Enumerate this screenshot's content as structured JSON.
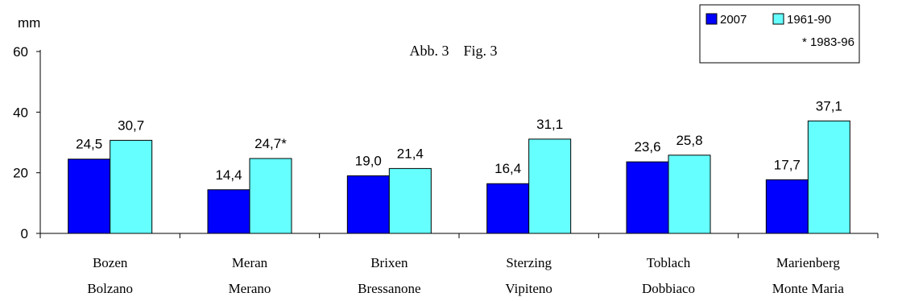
{
  "chart_data": {
    "type": "bar",
    "title": "Abb. 3    Fig. 3",
    "ylabel": "mm",
    "xlabel": "",
    "ylim": [
      0,
      60
    ],
    "yticks": [
      0,
      20,
      40,
      60
    ],
    "grid": false,
    "legend_position": "top-right",
    "legend_note": "* 1983-96",
    "categories": [
      {
        "line1": "Bozen",
        "line2": "Bolzano"
      },
      {
        "line1": "Meran",
        "line2": "Merano"
      },
      {
        "line1": "Brixen",
        "line2": "Bressanone"
      },
      {
        "line1": "Sterzing",
        "line2": "Vipiteno"
      },
      {
        "line1": "Toblach",
        "line2": "Dobbiaco"
      },
      {
        "line1": "Marienberg",
        "line2": "Monte Maria"
      }
    ],
    "series": [
      {
        "name": "2007",
        "color": "#0000ff",
        "values": [
          24.5,
          14.4,
          19.0,
          16.4,
          23.6,
          17.7
        ],
        "labels": [
          "24,5",
          "14,4",
          "19,0",
          "16,4",
          "23,6",
          "17,7"
        ]
      },
      {
        "name": "1961-90",
        "color": "#66ffff",
        "values": [
          30.7,
          24.7,
          21.4,
          31.1,
          25.8,
          37.1
        ],
        "labels": [
          "30,7",
          "24,7*",
          "21,4",
          "31,1",
          "25,8",
          "37,1"
        ]
      }
    ]
  }
}
